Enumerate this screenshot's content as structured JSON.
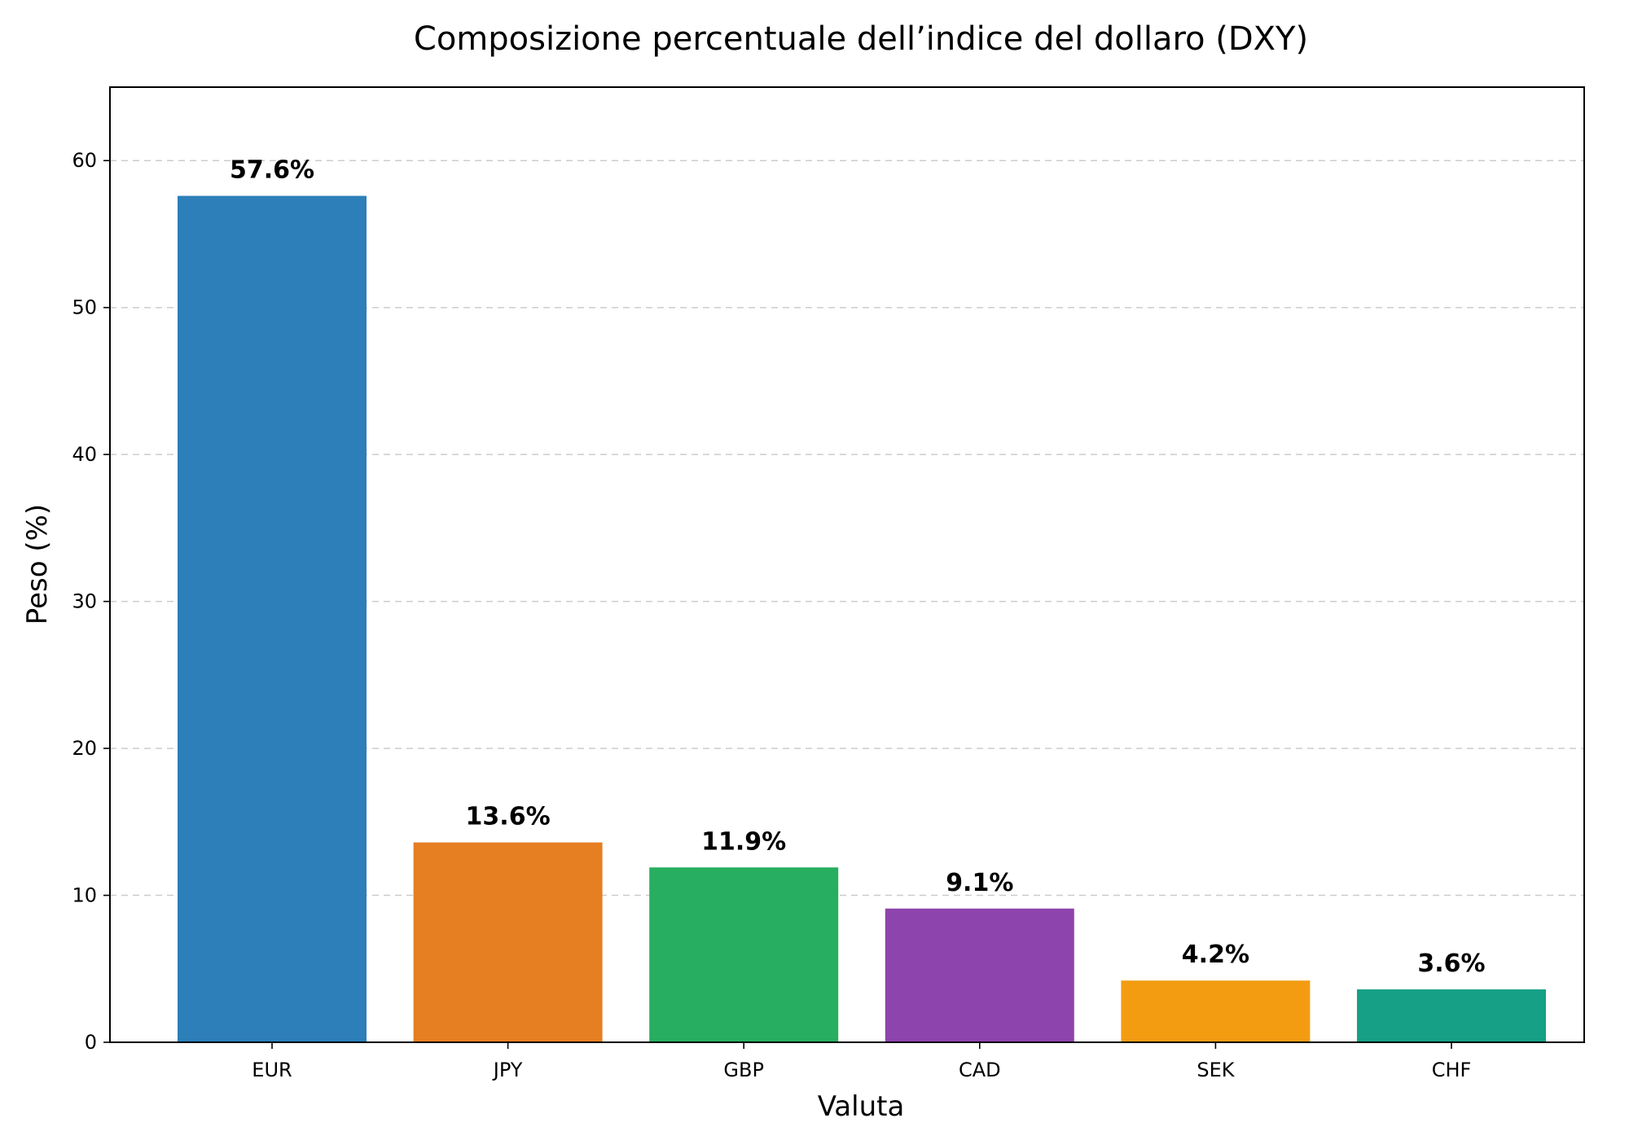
{
  "chart_data": {
    "type": "bar",
    "title": "Composizione percentuale dell’indice del dollaro (DXY)",
    "xlabel": "Valuta",
    "ylabel": "Peso (%)",
    "categories": [
      "EUR",
      "JPY",
      "GBP",
      "CAD",
      "SEK",
      "CHF"
    ],
    "values": [
      57.6,
      13.6,
      11.9,
      9.1,
      4.2,
      3.6
    ],
    "value_labels": [
      "57.6%",
      "13.6%",
      "11.9%",
      "9.1%",
      "4.2%",
      "3.6%"
    ],
    "colors": [
      "#2c7fb8",
      "#e67e22",
      "#27ae60",
      "#8e44ad",
      "#f39c12",
      "#16a085"
    ],
    "ylim": [
      0,
      65
    ],
    "yticks": [
      0,
      10,
      20,
      30,
      40,
      50,
      60
    ],
    "grid": "horizontal dashed",
    "legend": "none"
  }
}
